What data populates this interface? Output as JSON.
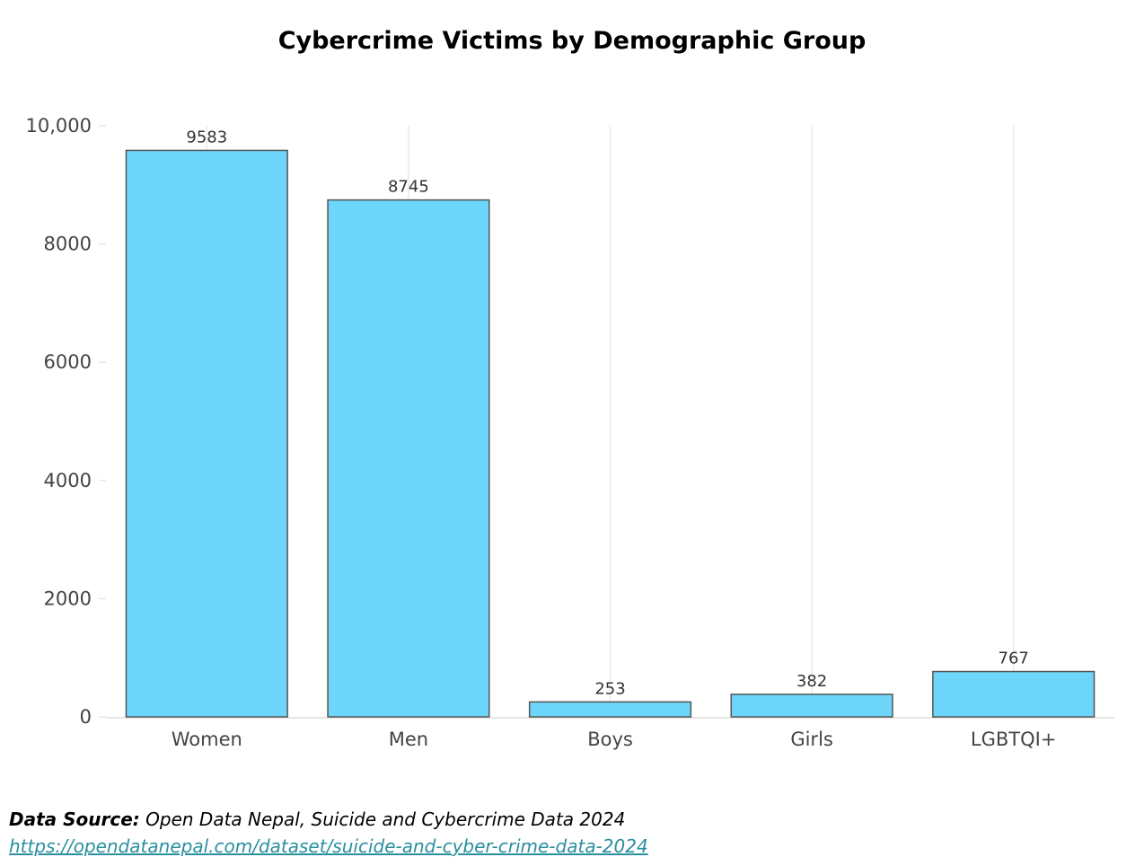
{
  "chart_data": {
    "type": "bar",
    "title": "Cybercrime Victims by Demographic Group",
    "xlabel": "",
    "ylabel": "",
    "categories": [
      "Women",
      "Men",
      "Boys",
      "Girls",
      "LGBTQI+"
    ],
    "values": [
      9583,
      8745,
      253,
      382,
      767
    ],
    "ylim": [
      0,
      10000
    ],
    "yticks": [
      0,
      2000,
      4000,
      6000,
      8000,
      10000
    ],
    "ytick_labels": [
      "0",
      "2000",
      "4000",
      "6000",
      "8000",
      "10,000"
    ],
    "bar_color": "#6dd6fa",
    "bar_edge_color": "#555555",
    "grid": "vertical",
    "legend": "none"
  },
  "source": {
    "label": "Data Source:",
    "text": "Open Data Nepal, Suicide and Cybercrime Data 2024",
    "url": "https://opendatanepal.com/dataset/suicide-and-cyber-crime-data-2024"
  }
}
